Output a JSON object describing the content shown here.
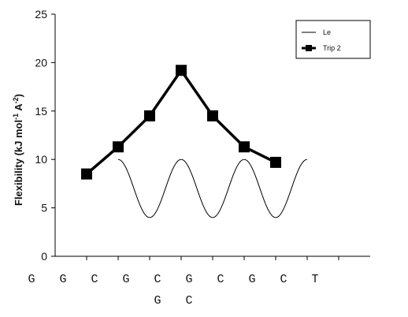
{
  "chart_data": {
    "type": "line",
    "ylabel_parts": [
      "Flexibility (kJ mol",
      "-1",
      " A",
      "-2",
      ")"
    ],
    "ylim": [
      0,
      25
    ],
    "yticks": [
      0,
      5,
      10,
      15,
      20,
      25
    ],
    "xlim": [
      0,
      10
    ],
    "x_axis_ticks": [
      1,
      2,
      3,
      4,
      5,
      6,
      7,
      8,
      9
    ],
    "grid": false,
    "legend_position": "top-right",
    "sequence_row1": [
      {
        "x": 0,
        "label": "G"
      },
      {
        "x": 1,
        "label": "G"
      },
      {
        "x": 2,
        "label": "C"
      },
      {
        "x": 3,
        "label": "G"
      },
      {
        "x": 4,
        "label": "C"
      },
      {
        "x": 5,
        "label": "G"
      },
      {
        "x": 6,
        "label": "C"
      },
      {
        "x": 7,
        "label": "G"
      },
      {
        "x": 8,
        "label": "C"
      },
      {
        "x": 9,
        "label": "T"
      }
    ],
    "sequence_row2": [
      {
        "x": 4,
        "label": "G"
      },
      {
        "x": 5,
        "label": "C"
      }
    ],
    "series": [
      {
        "name": "Le",
        "style": "thin",
        "color": "#000000",
        "curve": "cosine",
        "x_range": [
          2,
          8
        ],
        "y_min": 4,
        "y_max": 10,
        "period": 2
      },
      {
        "name": "Trip 2",
        "style": "thick-square-markers",
        "color": "#000000",
        "points": [
          {
            "x": 1,
            "y": 8.5
          },
          {
            "x": 2,
            "y": 11.3
          },
          {
            "x": 3,
            "y": 14.5
          },
          {
            "x": 4,
            "y": 19.2
          },
          {
            "x": 5,
            "y": 14.5
          },
          {
            "x": 6,
            "y": 11.3
          },
          {
            "x": 7,
            "y": 9.7
          }
        ]
      }
    ]
  }
}
